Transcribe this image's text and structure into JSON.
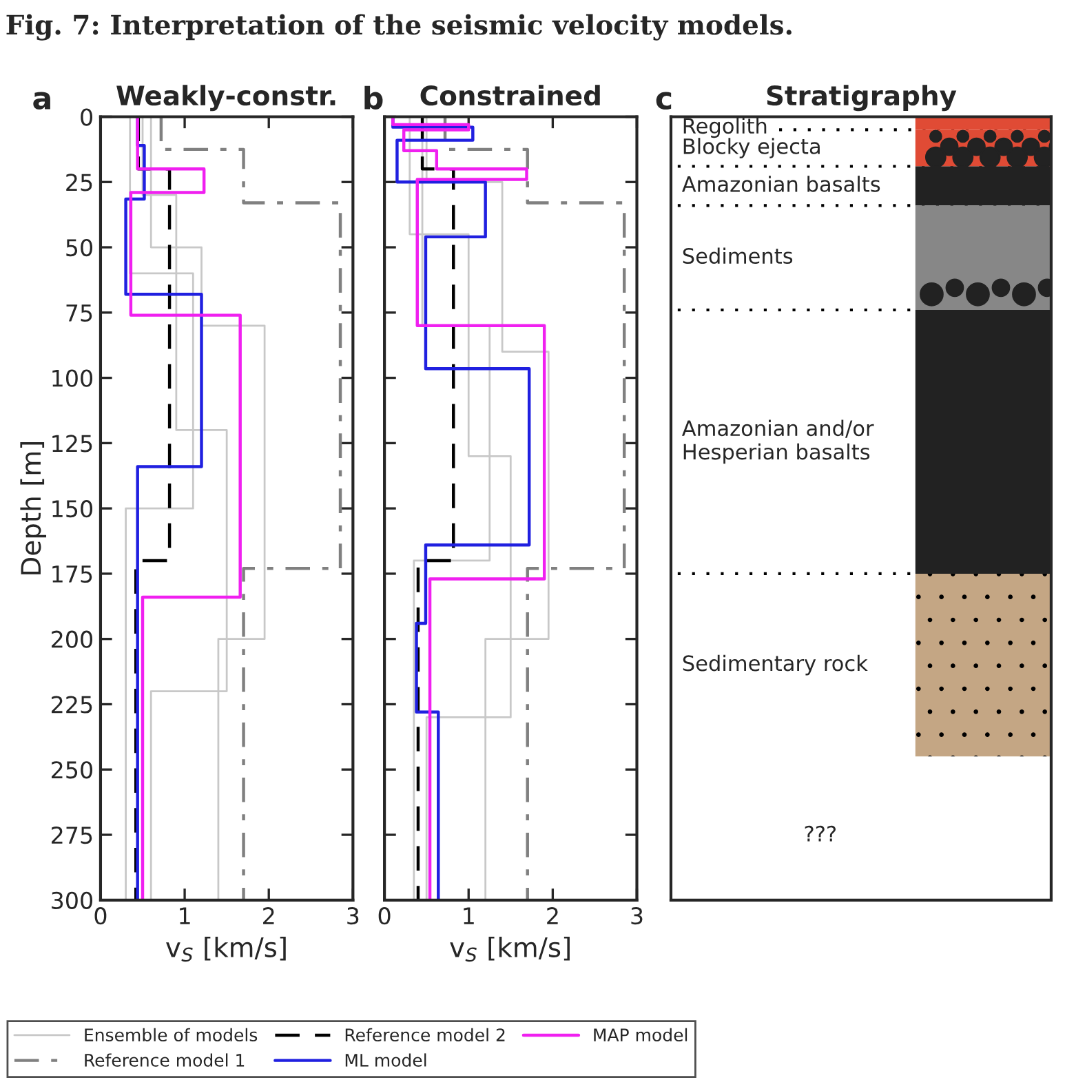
{
  "chart_data": [
    {
      "type": "line",
      "title": "Weakly-constr.",
      "xlabel": "v$_{S}$ [km/s]",
      "ylabel": "Depth [m]",
      "xlim": [
        0,
        3
      ],
      "xticks": [
        0,
        1,
        2,
        3
      ],
      "ylim": [
        300,
        0
      ],
      "yticks": [
        0,
        25,
        50,
        75,
        100,
        125,
        150,
        175,
        200,
        225,
        250,
        275,
        300
      ],
      "grid": false,
      "annotations": [
        "Fig. 7: Interpretation of the seismic velocity models.",
        "a"
      ],
      "series": [
        {
          "color": "#c8c8c8",
          "line_style": "solid",
          "x": [
            0.6,
            0.6,
            1.2,
            1.2,
            1.95,
            1.95,
            1.4,
            1.4
          ],
          "values": [
            0,
            50,
            50,
            80,
            80,
            200,
            200,
            300
          ]
        },
        {
          "color": "#c8c8c8",
          "line_style": "solid",
          "x": [
            0.5,
            0.5,
            0.9,
            0.9,
            1.5,
            1.5,
            0.6,
            0.6
          ],
          "values": [
            0,
            30,
            30,
            120,
            120,
            220,
            220,
            300
          ]
        },
        {
          "color": "#c8c8c8",
          "line_style": "solid",
          "x": [
            0.35,
            0.35,
            1.1,
            1.1,
            0.3,
            0.3
          ],
          "values": [
            0,
            60,
            60,
            150,
            150,
            300
          ]
        },
        {
          "color": "#808080",
          "line_style": "dashdot",
          "x": [
            0.72,
            0.72,
            1.7,
            1.7,
            2.85,
            2.85,
            1.7,
            1.7
          ],
          "values": [
            0,
            12.5,
            12.5,
            33,
            33,
            173,
            173,
            300
          ]
        },
        {
          "color": "#000000",
          "line_style": "dashed",
          "x": [
            0.45,
            0.45,
            0.82,
            0.82,
            0.42,
            0.42
          ],
          "values": [
            0,
            20,
            20,
            170,
            170,
            300
          ]
        },
        {
          "color": "#2020e0",
          "line_style": "solid",
          "x": [
            0.44,
            0.44,
            0.52,
            0.52,
            0.3,
            0.3,
            1.2,
            1.2,
            0.44,
            0.44
          ],
          "values": [
            0,
            11,
            11,
            31.5,
            31.5,
            68,
            68,
            134,
            134,
            300
          ]
        },
        {
          "color": "#f020f0",
          "line_style": "solid",
          "x": [
            0.44,
            0.44,
            1.23,
            1.23,
            0.36,
            0.36,
            1.66,
            1.66,
            0.5,
            0.5
          ],
          "values": [
            0,
            20,
            20,
            29,
            29,
            76,
            76,
            184,
            184,
            300
          ]
        }
      ]
    },
    {
      "type": "line",
      "title": "Constrained",
      "xlabel": "v$_{S}$ [km/s]",
      "xlim": [
        0,
        3
      ],
      "xticks": [
        0,
        1,
        2,
        3
      ],
      "ylim": [
        300,
        0
      ],
      "yticks": [
        0,
        25,
        50,
        75,
        100,
        125,
        150,
        175,
        200,
        225,
        250,
        275,
        300
      ],
      "tick_labels": "x",
      "grid": false,
      "legend": "bottom",
      "annotations": [
        "b"
      ],
      "series": [
        {
          "name": "Ensemble of models",
          "color": "#c8c8c8",
          "line_style": "solid",
          "x": [
            0.5,
            0.5,
            1.4,
            1.4,
            1.95,
            1.95,
            1.2,
            1.2
          ],
          "values": [
            0,
            25,
            25,
            90,
            90,
            200,
            200,
            300
          ]
        },
        {
          "color": "#c8c8c8",
          "line_style": "solid",
          "x": [
            0.3,
            0.3,
            1.0,
            1.0,
            1.5,
            1.5,
            0.5,
            0.5
          ],
          "values": [
            0,
            45,
            45,
            130,
            130,
            230,
            230,
            300
          ]
        },
        {
          "color": "#c8c8c8",
          "line_style": "solid",
          "x": [
            0.45,
            0.45,
            1.25,
            1.25,
            0.35,
            0.35
          ],
          "values": [
            0,
            80,
            80,
            170,
            170,
            300
          ]
        },
        {
          "name": "Reference model 1",
          "color": "#808080",
          "line_style": "dashdot",
          "x": [
            0.72,
            0.72,
            1.7,
            1.7,
            2.85,
            2.85,
            1.7,
            1.7
          ],
          "values": [
            0,
            12.5,
            12.5,
            33,
            33,
            173,
            173,
            300
          ]
        },
        {
          "name": "Reference model 2",
          "color": "#000000",
          "line_style": "dashed",
          "x": [
            0.45,
            0.45,
            0.82,
            0.82,
            0.4,
            0.4
          ],
          "values": [
            0,
            20,
            20,
            170,
            170,
            300
          ]
        },
        {
          "name": "ML model",
          "color": "#2020e0",
          "line_style": "solid",
          "x": [
            0.1,
            0.1,
            1.05,
            1.05,
            0.15,
            0.15,
            1.2,
            1.2,
            0.49,
            0.49,
            1.72,
            1.72,
            0.49,
            0.49,
            0.38,
            0.38,
            0.64,
            0.64
          ],
          "values": [
            0,
            4,
            4,
            9,
            9,
            25,
            25,
            46,
            46,
            96.5,
            96.5,
            164,
            164,
            194,
            194,
            228,
            228,
            300
          ]
        },
        {
          "name": "MAP model",
          "color": "#f020f0",
          "line_style": "solid",
          "x": [
            0.1,
            0.1,
            1.0,
            1.0,
            0.23,
            0.23,
            0.62,
            0.62,
            1.69,
            1.69,
            0.39,
            0.39,
            1.9,
            1.9,
            0.54,
            0.54
          ],
          "values": [
            0,
            3,
            3,
            5,
            5,
            13,
            13,
            20,
            20,
            24,
            24,
            80,
            80,
            177,
            177,
            300
          ]
        }
      ]
    },
    {
      "type": "bar",
      "stacked": true,
      "title": "Stratigraphy",
      "categories": [
        null
      ],
      "ylim": [
        300,
        0
      ],
      "tick_labels": false,
      "annotations": [
        "c",
        "Regolith",
        "Blocky ejecta",
        "Amazonian basalts",
        "Sediments",
        "Amazonian and/or\nHesperian basalts",
        "Sedimentary rock",
        "???"
      ],
      "ref_lines": [
        {
          "axis": "y",
          "value": 5,
          "line_style": "dotted",
          "color": "#000000"
        },
        {
          "axis": "y",
          "value": 19,
          "line_style": "dotted",
          "color": "#000000"
        },
        {
          "axis": "y",
          "value": 34,
          "line_style": "dotted",
          "color": "#000000"
        },
        {
          "axis": "y",
          "value": 74,
          "line_style": "dotted",
          "color": "#000000"
        },
        {
          "axis": "y",
          "value": 175,
          "line_style": "dotted",
          "color": "#000000"
        }
      ],
      "series": [
        {
          "color": "#e04b35",
          "values": [
            5
          ]
        },
        {
          "color": "#e04b35",
          "values": [
            14
          ]
        },
        {
          "color": "#222222",
          "values": [
            15
          ]
        },
        {
          "color": "#878787",
          "values": [
            40
          ]
        },
        {
          "color": "#222222",
          "values": [
            101
          ]
        },
        {
          "color": "#c4a684",
          "values": [
            70
          ]
        }
      ]
    }
  ]
}
